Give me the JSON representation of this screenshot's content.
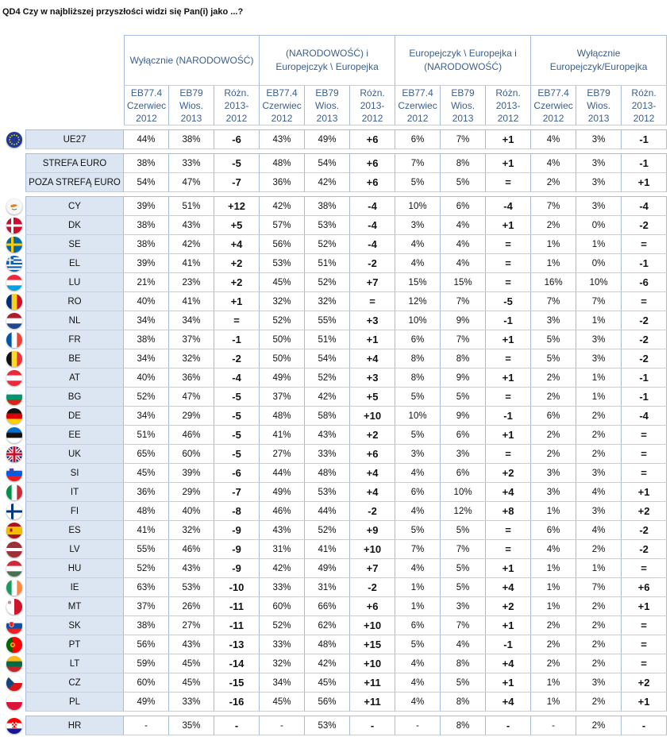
{
  "title": "QD4 Czy w najbliższej przyszłości widzi się Pan(i) jako ...?",
  "groups": [
    "Wyłącznie (NARODOWOŚĆ)",
    "(NARODOWOŚĆ) i Europejczyk \\ Europejka",
    "Europejczyk \\ Europejka i (NARODOWOŚĆ)",
    "Wyłącznie Europejczyk/Europejka"
  ],
  "subheaders": [
    "EB77.4 Czerwiec 2012",
    "EB79 Wios. 2013",
    "Różn. 2013-2012"
  ],
  "blocks": [
    [
      {
        "label": "UE27",
        "flag": "eu",
        "values": [
          "44%",
          "38%",
          "-6",
          "43%",
          "49%",
          "+6",
          "6%",
          "7%",
          "+1",
          "4%",
          "3%",
          "-1"
        ]
      }
    ],
    [
      {
        "label": "STREFA EURO",
        "flag": "",
        "values": [
          "38%",
          "33%",
          "-5",
          "48%",
          "54%",
          "+6",
          "7%",
          "8%",
          "+1",
          "4%",
          "3%",
          "-1"
        ]
      },
      {
        "label": "POZA STREFĄ EURO",
        "flag": "",
        "values": [
          "54%",
          "47%",
          "-7",
          "36%",
          "42%",
          "+6",
          "5%",
          "5%",
          "=",
          "2%",
          "3%",
          "+1"
        ]
      }
    ],
    [
      {
        "label": "CY",
        "flag": "cy",
        "values": [
          "39%",
          "51%",
          "+12",
          "42%",
          "38%",
          "-4",
          "10%",
          "6%",
          "-4",
          "7%",
          "3%",
          "-4"
        ]
      },
      {
        "label": "DK",
        "flag": "dk",
        "values": [
          "38%",
          "43%",
          "+5",
          "57%",
          "53%",
          "-4",
          "3%",
          "4%",
          "+1",
          "2%",
          "0%",
          "-2"
        ]
      },
      {
        "label": "SE",
        "flag": "se",
        "values": [
          "38%",
          "42%",
          "+4",
          "56%",
          "52%",
          "-4",
          "4%",
          "4%",
          "=",
          "1%",
          "1%",
          "="
        ]
      },
      {
        "label": "EL",
        "flag": "el",
        "values": [
          "39%",
          "41%",
          "+2",
          "53%",
          "51%",
          "-2",
          "4%",
          "4%",
          "=",
          "1%",
          "0%",
          "-1"
        ]
      },
      {
        "label": "LU",
        "flag": "lu",
        "values": [
          "21%",
          "23%",
          "+2",
          "45%",
          "52%",
          "+7",
          "15%",
          "15%",
          "=",
          "16%",
          "10%",
          "-6"
        ]
      },
      {
        "label": "RO",
        "flag": "ro",
        "values": [
          "40%",
          "41%",
          "+1",
          "32%",
          "32%",
          "=",
          "12%",
          "7%",
          "-5",
          "7%",
          "7%",
          "="
        ]
      },
      {
        "label": "NL",
        "flag": "nl",
        "values": [
          "34%",
          "34%",
          "=",
          "52%",
          "55%",
          "+3",
          "10%",
          "9%",
          "-1",
          "3%",
          "1%",
          "-2"
        ]
      },
      {
        "label": "FR",
        "flag": "fr",
        "values": [
          "38%",
          "37%",
          "-1",
          "50%",
          "51%",
          "+1",
          "6%",
          "7%",
          "+1",
          "5%",
          "3%",
          "-2"
        ]
      },
      {
        "label": "BE",
        "flag": "be",
        "values": [
          "34%",
          "32%",
          "-2",
          "50%",
          "54%",
          "+4",
          "8%",
          "8%",
          "=",
          "5%",
          "3%",
          "-2"
        ]
      },
      {
        "label": "AT",
        "flag": "at",
        "values": [
          "40%",
          "36%",
          "-4",
          "49%",
          "52%",
          "+3",
          "8%",
          "9%",
          "+1",
          "2%",
          "1%",
          "-1"
        ]
      },
      {
        "label": "BG",
        "flag": "bg",
        "values": [
          "52%",
          "47%",
          "-5",
          "37%",
          "42%",
          "+5",
          "5%",
          "5%",
          "=",
          "2%",
          "1%",
          "-1"
        ]
      },
      {
        "label": "DE",
        "flag": "de",
        "values": [
          "34%",
          "29%",
          "-5",
          "48%",
          "58%",
          "+10",
          "10%",
          "9%",
          "-1",
          "6%",
          "2%",
          "-4"
        ]
      },
      {
        "label": "EE",
        "flag": "ee",
        "values": [
          "51%",
          "46%",
          "-5",
          "41%",
          "43%",
          "+2",
          "5%",
          "6%",
          "+1",
          "2%",
          "2%",
          "="
        ]
      },
      {
        "label": "UK",
        "flag": "uk",
        "values": [
          "65%",
          "60%",
          "-5",
          "27%",
          "33%",
          "+6",
          "3%",
          "3%",
          "=",
          "2%",
          "2%",
          "="
        ]
      },
      {
        "label": "SI",
        "flag": "si",
        "values": [
          "45%",
          "39%",
          "-6",
          "44%",
          "48%",
          "+4",
          "4%",
          "6%",
          "+2",
          "3%",
          "3%",
          "="
        ]
      },
      {
        "label": "IT",
        "flag": "it",
        "values": [
          "36%",
          "29%",
          "-7",
          "49%",
          "53%",
          "+4",
          "6%",
          "10%",
          "+4",
          "3%",
          "4%",
          "+1"
        ]
      },
      {
        "label": "FI",
        "flag": "fi",
        "values": [
          "48%",
          "40%",
          "-8",
          "46%",
          "44%",
          "-2",
          "4%",
          "12%",
          "+8",
          "1%",
          "3%",
          "+2"
        ]
      },
      {
        "label": "ES",
        "flag": "es",
        "values": [
          "41%",
          "32%",
          "-9",
          "43%",
          "52%",
          "+9",
          "5%",
          "5%",
          "=",
          "6%",
          "4%",
          "-2"
        ]
      },
      {
        "label": "LV",
        "flag": "lv",
        "values": [
          "55%",
          "46%",
          "-9",
          "31%",
          "41%",
          "+10",
          "7%",
          "7%",
          "=",
          "4%",
          "2%",
          "-2"
        ]
      },
      {
        "label": "HU",
        "flag": "hu",
        "values": [
          "52%",
          "43%",
          "-9",
          "42%",
          "49%",
          "+7",
          "4%",
          "5%",
          "+1",
          "1%",
          "1%",
          "="
        ]
      },
      {
        "label": "IE",
        "flag": "ie",
        "values": [
          "63%",
          "53%",
          "-10",
          "33%",
          "31%",
          "-2",
          "1%",
          "5%",
          "+4",
          "1%",
          "7%",
          "+6"
        ]
      },
      {
        "label": "MT",
        "flag": "mt",
        "values": [
          "37%",
          "26%",
          "-11",
          "60%",
          "66%",
          "+6",
          "1%",
          "3%",
          "+2",
          "1%",
          "2%",
          "+1"
        ]
      },
      {
        "label": "SK",
        "flag": "sk",
        "values": [
          "38%",
          "27%",
          "-11",
          "52%",
          "62%",
          "+10",
          "6%",
          "7%",
          "+1",
          "2%",
          "2%",
          "="
        ]
      },
      {
        "label": "PT",
        "flag": "pt",
        "values": [
          "56%",
          "43%",
          "-13",
          "33%",
          "48%",
          "+15",
          "5%",
          "4%",
          "-1",
          "2%",
          "2%",
          "="
        ]
      },
      {
        "label": "LT",
        "flag": "lt",
        "values": [
          "59%",
          "45%",
          "-14",
          "32%",
          "42%",
          "+10",
          "4%",
          "8%",
          "+4",
          "2%",
          "2%",
          "="
        ]
      },
      {
        "label": "CZ",
        "flag": "cz",
        "values": [
          "60%",
          "45%",
          "-15",
          "34%",
          "45%",
          "+11",
          "4%",
          "5%",
          "+1",
          "1%",
          "3%",
          "+2"
        ]
      },
      {
        "label": "PL",
        "flag": "pl",
        "values": [
          "49%",
          "33%",
          "-16",
          "45%",
          "56%",
          "+11",
          "4%",
          "8%",
          "+4",
          "1%",
          "2%",
          "+1"
        ]
      }
    ],
    [
      {
        "label": "HR",
        "flag": "hr",
        "values": [
          "-",
          "35%",
          "-",
          "-",
          "53%",
          "-",
          "-",
          "8%",
          "-",
          "-",
          "2%",
          "-"
        ]
      }
    ]
  ]
}
